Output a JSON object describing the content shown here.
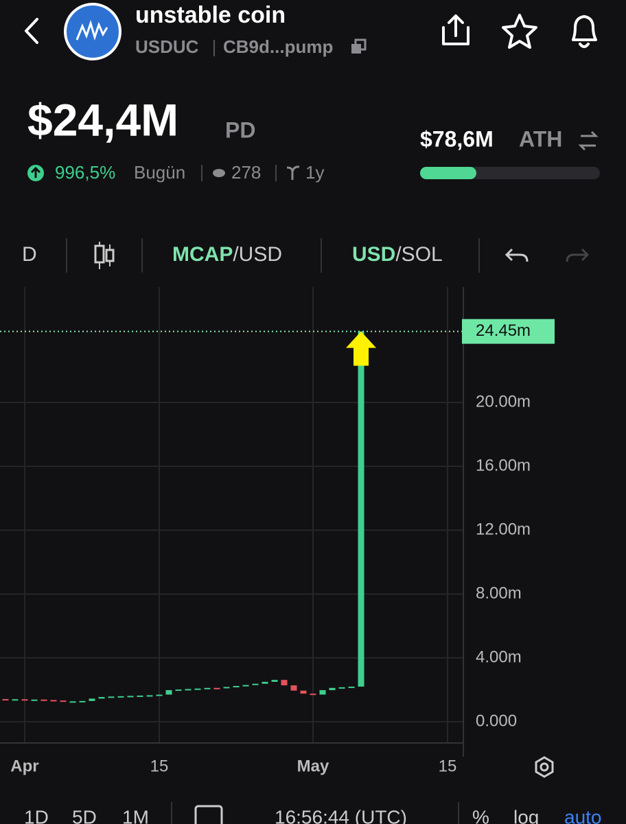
{
  "header": {
    "title": "unstable coin",
    "symbol": "USDUC",
    "address": "CB9d...pump"
  },
  "stats": {
    "market_cap": "$24,4M",
    "market_cap_unit": "PD",
    "change": "996,5%",
    "change_period": "Bugün",
    "views": "278",
    "age": "1y",
    "ath": "$78,6M",
    "ath_label": "ATH"
  },
  "toolbar": {
    "interval": "D",
    "mcap": "MCAP",
    "mcap_quote": "/USD",
    "usd": "USD",
    "usd_quote": "/SOL"
  },
  "chart_data": {
    "type": "candlestick",
    "x": [
      -2,
      -1,
      0,
      1,
      2,
      3,
      4,
      5,
      6,
      7,
      8,
      9,
      10,
      11,
      12,
      13,
      14,
      15,
      16,
      17,
      18,
      19,
      20,
      21,
      22,
      23,
      24,
      25,
      26,
      27,
      28,
      29,
      30,
      31,
      32,
      33,
      34,
      35
    ],
    "open": [
      1.42,
      1.4,
      1.41,
      1.38,
      1.39,
      1.36,
      1.33,
      1.25,
      1.28,
      1.3,
      1.45,
      1.55,
      1.58,
      1.6,
      1.62,
      1.64,
      1.66,
      1.7,
      1.98,
      2.02,
      2.05,
      2.08,
      2.12,
      2.1,
      2.18,
      2.24,
      2.3,
      2.38,
      2.5,
      2.62,
      2.28,
      1.95,
      1.76,
      1.7,
      1.98,
      2.12,
      2.16,
      2.2
    ],
    "close": [
      1.4,
      1.41,
      1.38,
      1.39,
      1.36,
      1.33,
      1.25,
      1.28,
      1.3,
      1.45,
      1.55,
      1.58,
      1.6,
      1.62,
      1.64,
      1.66,
      1.7,
      1.98,
      2.02,
      2.05,
      2.08,
      2.12,
      2.1,
      2.18,
      2.24,
      2.3,
      2.38,
      2.5,
      2.62,
      2.28,
      1.95,
      1.76,
      1.7,
      1.98,
      2.12,
      2.16,
      2.2,
      24.45
    ],
    "up_color": "#3ecf8e",
    "down_color": "#e5525c",
    "xlim": [
      -2.57,
      45.64
    ],
    "xticks": [
      {
        "value": 0,
        "label": "Apr"
      },
      {
        "value": 14,
        "label": "15"
      },
      {
        "value": 30,
        "label": "May"
      },
      {
        "value": 44,
        "label": "15"
      }
    ],
    "ylim": [
      -1.33,
      27.23
    ],
    "yticks": [
      {
        "value": 0,
        "label": "0.000"
      },
      {
        "value": 4,
        "label": "4.00m"
      },
      {
        "value": 8,
        "label": "8.00m"
      },
      {
        "value": 12,
        "label": "12.00m"
      },
      {
        "value": 16,
        "label": "16.00m"
      },
      {
        "value": 20,
        "label": "20.00m"
      }
    ],
    "price_line": {
      "value": 24.45,
      "label": "24.45m"
    },
    "grid": true
  },
  "footer": {
    "ranges": [
      "1D",
      "5D",
      "1M"
    ],
    "time": "16:56:44 (UTC)",
    "percent": "%",
    "log": "log",
    "auto": "auto"
  }
}
